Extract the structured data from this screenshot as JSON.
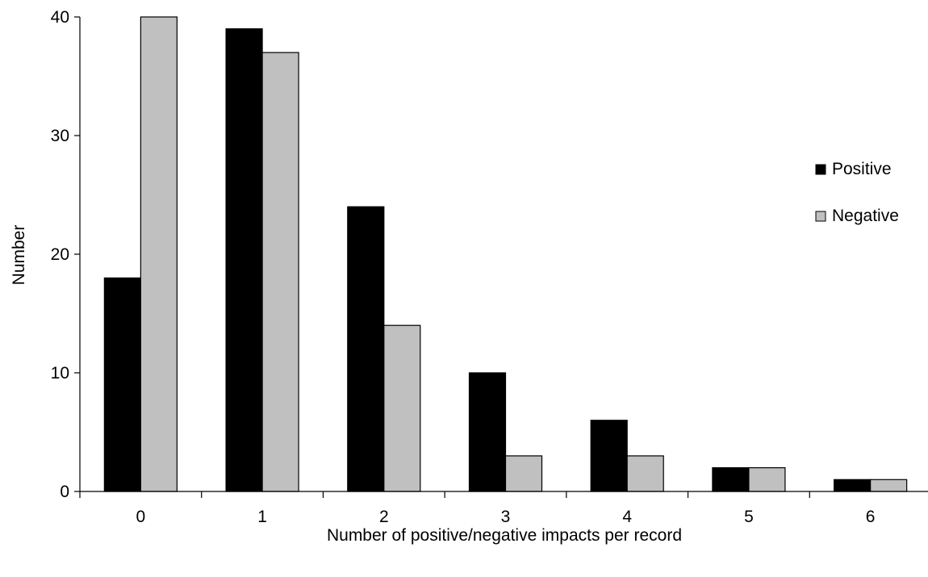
{
  "chart_data": {
    "type": "bar",
    "title": "",
    "xlabel": "Number of positive/negative impacts per record",
    "ylabel": "Number",
    "categories": [
      "0",
      "1",
      "2",
      "3",
      "4",
      "5",
      "6"
    ],
    "series": [
      {
        "name": "Positive",
        "values": [
          18,
          39,
          24,
          10,
          6,
          2,
          1
        ],
        "color": "#000000"
      },
      {
        "name": "Negative",
        "values": [
          40,
          37,
          14,
          3,
          3,
          2,
          1
        ],
        "color": "#c0c0c0"
      }
    ],
    "ylim": [
      0,
      40
    ],
    "yticks": [
      0,
      10,
      20,
      30,
      40
    ],
    "grid": false,
    "legend_position": "right"
  }
}
